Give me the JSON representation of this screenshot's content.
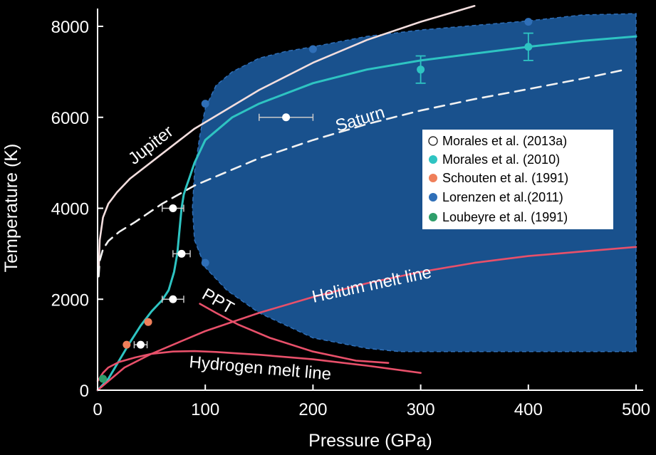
{
  "chart_data": {
    "type": "scatter",
    "xlabel": "Pressure (GPa)",
    "ylabel": "Temperature (K)",
    "xlim": [
      0,
      500
    ],
    "ylim": [
      0,
      8500
    ],
    "xticks": [
      0,
      100,
      200,
      300,
      400,
      500
    ],
    "yticks": [
      0,
      2000,
      4000,
      6000,
      8000
    ],
    "grid": false,
    "legend_position": "right",
    "colors": {
      "background": "#000000",
      "region_fill": "#1a5595",
      "region_edge": "#2f6fb8",
      "jupiter": "#f3dede",
      "saturn": "#f2f2f2",
      "cyan": "#2ec4c2",
      "pink": "#e8506a"
    },
    "region": {
      "x": [
        100,
        110,
        125,
        150,
        175,
        200,
        250,
        300,
        350,
        400,
        450,
        500,
        500,
        450,
        400,
        350,
        300,
        280,
        250,
        200,
        150,
        120,
        100,
        90,
        88,
        90,
        95
      ],
      "y": [
        6200,
        6700,
        7000,
        7300,
        7450,
        7550,
        7780,
        7920,
        8020,
        8120,
        8250,
        8280,
        850,
        850,
        850,
        850,
        850,
        850,
        920,
        1150,
        1700,
        2200,
        2700,
        3300,
        4000,
        4800,
        5600
      ]
    },
    "curves": [
      {
        "name": "Jupiter",
        "style": "solid",
        "color": "#f3dede",
        "x": [
          1,
          2,
          5,
          10,
          18,
          30,
          60,
          90,
          150,
          200,
          250,
          300,
          350
        ],
        "y": [
          2600,
          3300,
          3800,
          4100,
          4350,
          4650,
          5200,
          5750,
          6600,
          7200,
          7700,
          8100,
          8450
        ]
      },
      {
        "name": "Saturn",
        "style": "dashed",
        "color": "#f2f2f2",
        "x": [
          1,
          2,
          5,
          10,
          20,
          35,
          60,
          90,
          150,
          200,
          250,
          300,
          350,
          400,
          450,
          490
        ],
        "y": [
          2500,
          2850,
          3100,
          3280,
          3480,
          3700,
          4100,
          4500,
          5100,
          5500,
          5850,
          6150,
          6400,
          6620,
          6850,
          7050
        ]
      },
      {
        "name": "Morales 2010 fit",
        "style": "solid",
        "color": "#2ec4c2",
        "x": [
          0,
          10,
          20,
          30,
          40,
          50,
          60,
          66,
          71,
          74,
          76,
          78,
          80,
          82,
          85,
          90,
          100,
          125,
          150,
          200,
          250,
          300,
          350,
          400,
          450,
          500
        ],
        "y": [
          0,
          250,
          650,
          1050,
          1420,
          1730,
          1980,
          2200,
          2600,
          3000,
          3500,
          4000,
          4300,
          4450,
          4650,
          5000,
          5500,
          6000,
          6300,
          6750,
          7050,
          7250,
          7400,
          7550,
          7680,
          7780
        ]
      },
      {
        "name": "Helium melt line",
        "style": "solid",
        "color": "#e8506a",
        "x": [
          0,
          25,
          50,
          75,
          100,
          150,
          200,
          250,
          300,
          350,
          400,
          450,
          500
        ],
        "y": [
          0,
          500,
          800,
          1050,
          1300,
          1700,
          2050,
          2350,
          2600,
          2800,
          2950,
          3050,
          3150
        ]
      },
      {
        "name": "PPT",
        "style": "solid",
        "color": "#e8506a",
        "x": [
          95,
          110,
          130,
          160,
          200,
          240,
          270
        ],
        "y": [
          1900,
          1700,
          1450,
          1150,
          850,
          650,
          600
        ]
      },
      {
        "name": "Hydrogen melt line",
        "style": "solid",
        "color": "#e8506a",
        "x": [
          0,
          5,
          10,
          20,
          35,
          50,
          70,
          90,
          110,
          130,
          150,
          200,
          250,
          300
        ],
        "y": [
          200,
          380,
          500,
          620,
          720,
          800,
          850,
          860,
          840,
          810,
          780,
          680,
          540,
          380
        ]
      }
    ],
    "curve_labels": [
      "Jupiter",
      "Saturn",
      "Helium melt line",
      "PPT",
      "Hydrogen melt line"
    ],
    "series": [
      {
        "name": "Morales et al. (2013a)",
        "color": "#ffffff",
        "points": [
          {
            "x": 175,
            "y": 6000,
            "xerr": 25
          },
          {
            "x": 70,
            "y": 4000,
            "xerr": 10
          },
          {
            "x": 78,
            "y": 3000,
            "xerr": 8
          },
          {
            "x": 70,
            "y": 2000,
            "xerr": 10
          },
          {
            "x": 40,
            "y": 1000,
            "xerr": 6
          }
        ]
      },
      {
        "name": "Morales et al. (2010)",
        "color": "#2ec4c2",
        "points": [
          {
            "x": 300,
            "y": 7050,
            "yerr": 300
          },
          {
            "x": 400,
            "y": 7550,
            "yerr": 300
          },
          {
            "x": 5,
            "y": 250
          }
        ]
      },
      {
        "name": "Schouten et al. (1991)",
        "color": "#ef7f5a",
        "points": [
          {
            "x": 27,
            "y": 1000
          },
          {
            "x": 47,
            "y": 1500
          }
        ]
      },
      {
        "name": "Lorenzen et al.(2011)",
        "color": "#2f6fb8",
        "points": [
          {
            "x": 100,
            "y": 6300
          },
          {
            "x": 200,
            "y": 7500
          },
          {
            "x": 400,
            "y": 8100
          },
          {
            "x": 100,
            "y": 2800
          }
        ]
      },
      {
        "name": "Loubeyre et al. (1991)",
        "color": "#2e9e6a",
        "points": [
          {
            "x": 5,
            "y": 250
          }
        ]
      }
    ]
  }
}
